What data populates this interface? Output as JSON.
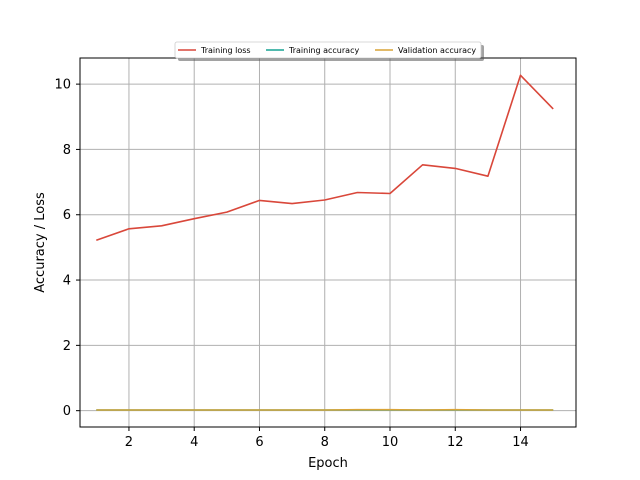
{
  "chart_data": {
    "type": "line",
    "title": "",
    "xlabel": "Epoch",
    "ylabel": "Accuracy / Loss",
    "x": [
      1,
      2,
      3,
      4,
      5,
      6,
      7,
      8,
      9,
      10,
      11,
      12,
      13,
      14,
      15
    ],
    "xlim": [
      0.5,
      15.7
    ],
    "ylim": [
      -0.5,
      10.8
    ],
    "xticks": [
      2,
      4,
      6,
      8,
      10,
      12,
      14
    ],
    "yticks": [
      0,
      2,
      4,
      6,
      8,
      10
    ],
    "grid": true,
    "legend_position": "top-center",
    "series": [
      {
        "name": "Training loss",
        "color": "#d9473a",
        "values": [
          5.22,
          5.57,
          5.66,
          5.88,
          6.08,
          6.44,
          6.34,
          6.45,
          6.68,
          6.65,
          7.53,
          7.42,
          7.18,
          10.27,
          9.24
        ]
      },
      {
        "name": "Training accuracy",
        "color": "#17a394",
        "values": [
          0.02,
          0.02,
          0.02,
          0.02,
          0.02,
          0.02,
          0.02,
          0.02,
          0.02,
          0.02,
          0.02,
          0.02,
          0.02,
          0.02,
          0.02
        ]
      },
      {
        "name": "Validation accuracy",
        "color": "#d9a437",
        "values": [
          0.02,
          0.02,
          0.02,
          0.02,
          0.02,
          0.02,
          0.02,
          0.02,
          0.03,
          0.03,
          0.02,
          0.03,
          0.02,
          0.02,
          0.02
        ]
      }
    ]
  }
}
